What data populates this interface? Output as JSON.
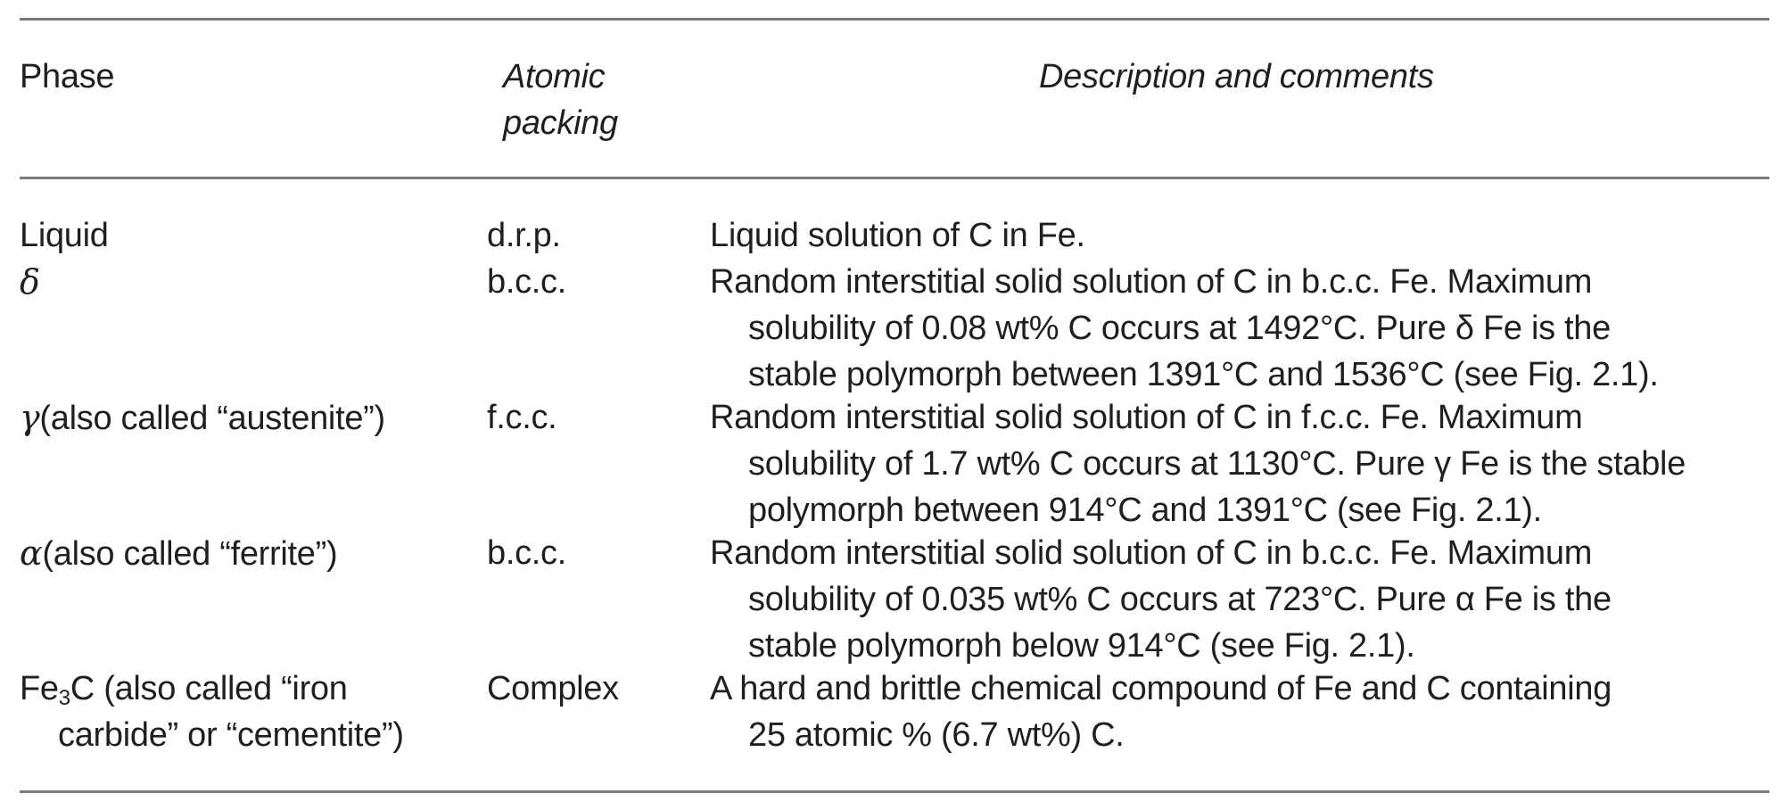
{
  "table": {
    "headers": {
      "phase": "Phase",
      "packing_line1": "Atomic",
      "packing_line2": "packing",
      "description": "Description and comments"
    },
    "rows": [
      {
        "phase_symbol": "",
        "phase_text": "Liquid",
        "packing": "d.r.p.",
        "description_lines": [
          "Liquid solution of C in Fe."
        ]
      },
      {
        "phase_symbol": "δ",
        "phase_text": "",
        "packing": "b.c.c.",
        "description_lines": [
          "Random interstitial solid solution of C in b.c.c. Fe. Maximum",
          "solubility of 0.08 wt% C occurs at 1492°C. Pure δ Fe is the",
          "stable polymorph between 1391°C and 1536°C (see Fig. 2.1)."
        ]
      },
      {
        "phase_symbol": "γ",
        "phase_text": "(also called “austenite”)",
        "packing": "f.c.c.",
        "description_lines": [
          "Random interstitial solid solution of C in f.c.c. Fe. Maximum",
          "solubility of 1.7 wt% C occurs at 1130°C. Pure γ Fe is the stable",
          "polymorph between 914°C and 1391°C (see Fig. 2.1)."
        ]
      },
      {
        "phase_symbol": "α",
        "phase_text": "(also called “ferrite”)",
        "packing": "b.c.c.",
        "description_lines": [
          "Random interstitial solid solution of C in b.c.c. Fe. Maximum",
          "solubility of 0.035 wt% C occurs at 723°C. Pure α Fe is the",
          "stable polymorph below 914°C (see Fig. 2.1)."
        ]
      },
      {
        "phase_formula_main": "Fe",
        "phase_formula_sub": "3",
        "phase_formula_tail": "C (also called “iron",
        "phase_line2": "carbide” or “cementite”)",
        "packing": "Complex",
        "description_lines": [
          "A hard and brittle chemical compound of Fe and C containing",
          "25 atomic % (6.7 wt%) C."
        ]
      }
    ]
  }
}
